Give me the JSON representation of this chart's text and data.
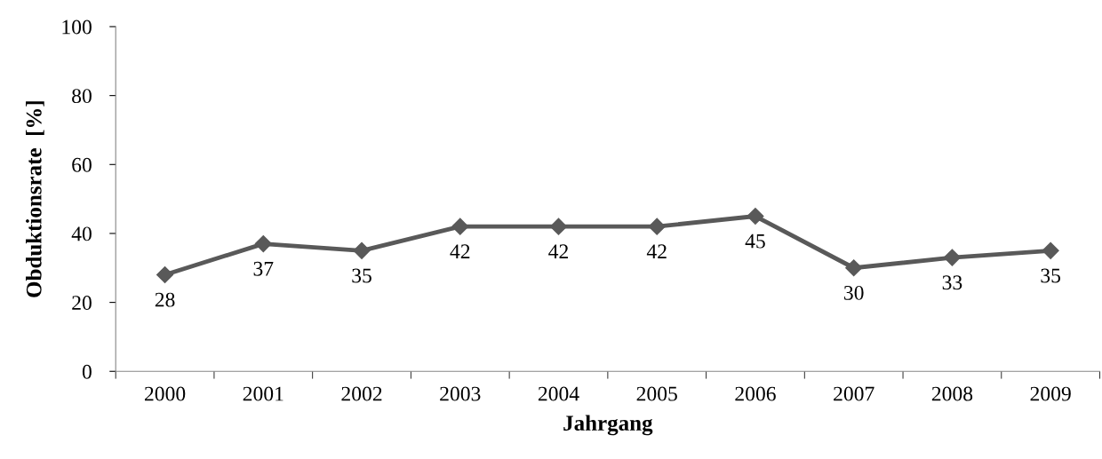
{
  "chart_data": {
    "type": "line",
    "xlabel": "Jahrgang",
    "ylabel": "Obduktionsrate  [%]",
    "categories": [
      "2000",
      "2001",
      "2002",
      "2003",
      "2004",
      "2005",
      "2006",
      "2007",
      "2008",
      "2009"
    ],
    "series": [
      {
        "color": "#595959",
        "values": [
          28,
          37,
          35,
          42,
          42,
          42,
          45,
          30,
          33,
          35
        ]
      }
    ],
    "ylim": [
      0,
      100
    ],
    "yticks": [
      0,
      20,
      40,
      60,
      80,
      100
    ],
    "marker": "diamond",
    "line_style": "solid",
    "data_labels": true,
    "grid": false,
    "legend": false
  }
}
